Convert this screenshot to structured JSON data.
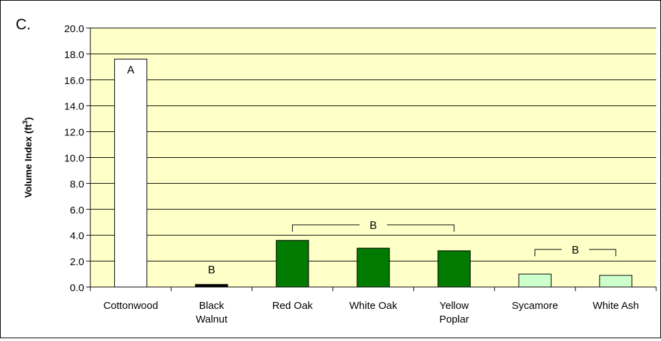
{
  "panel_label": "C.",
  "colors": {
    "plot_background": "#ffffc8",
    "gridline": "#000000",
    "white_bar": "#ffffff",
    "black_bar": "#000000",
    "oak_poplar_bar": "#007a00",
    "light_green_bar": "#ccffcc"
  },
  "chart_data": {
    "type": "bar",
    "title": "",
    "xlabel": "",
    "ylabel_main": "Volume Index (ft",
    "ylabel_sup": "3",
    "ylabel_close": ")",
    "ylim": [
      0,
      20
    ],
    "grid": true,
    "legend": "none",
    "yticks": [
      "0.0",
      "2.0",
      "4.0",
      "6.0",
      "8.0",
      "10.0",
      "12.0",
      "14.0",
      "16.0",
      "18.0",
      "20.0"
    ],
    "categories": [
      [
        "Cottonwood"
      ],
      [
        "Black",
        "Walnut"
      ],
      [
        "Red Oak"
      ],
      [
        "White Oak"
      ],
      [
        "Yellow",
        "Poplar"
      ],
      [
        "Sycamore"
      ],
      [
        "White Ash"
      ]
    ],
    "values": [
      17.6,
      0.2,
      3.6,
      3.0,
      2.8,
      1.0,
      0.9
    ],
    "bar_colors": [
      "#ffffff",
      "#000000",
      "#007a00",
      "#007a00",
      "#007a00",
      "#ccffcc",
      "#ccffcc"
    ],
    "annotations": [
      {
        "text": "A",
        "type": "inside",
        "category_index": 0
      },
      {
        "text": "B",
        "type": "above",
        "category_index": 1
      },
      {
        "text": "B",
        "type": "bracket",
        "from": 2,
        "to": 4,
        "y": 4.8
      },
      {
        "text": "B",
        "type": "bracket",
        "from": 5,
        "to": 6,
        "y": 2.9
      }
    ]
  }
}
